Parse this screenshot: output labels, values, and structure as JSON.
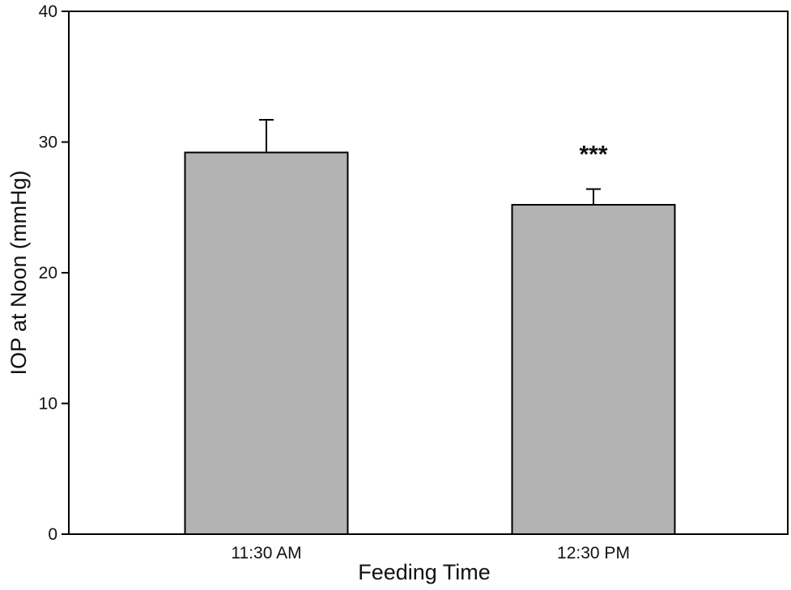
{
  "chart_data": {
    "type": "bar",
    "title": "",
    "xlabel": "Feeding Time",
    "ylabel": "IOP at Noon (mmHg)",
    "categories": [
      "11:30 AM",
      "12:30 PM"
    ],
    "values": [
      29.2,
      25.2
    ],
    "error_upper": [
      2.5,
      1.2
    ],
    "ylim": [
      0,
      40
    ],
    "yticks": [
      0,
      10,
      20,
      30,
      40
    ],
    "grid": false,
    "legend": null,
    "annotations": [
      {
        "category": "12:30 PM",
        "text": "***"
      }
    ],
    "bar_color": "#b3b3b3",
    "edge_color": "#000000"
  }
}
